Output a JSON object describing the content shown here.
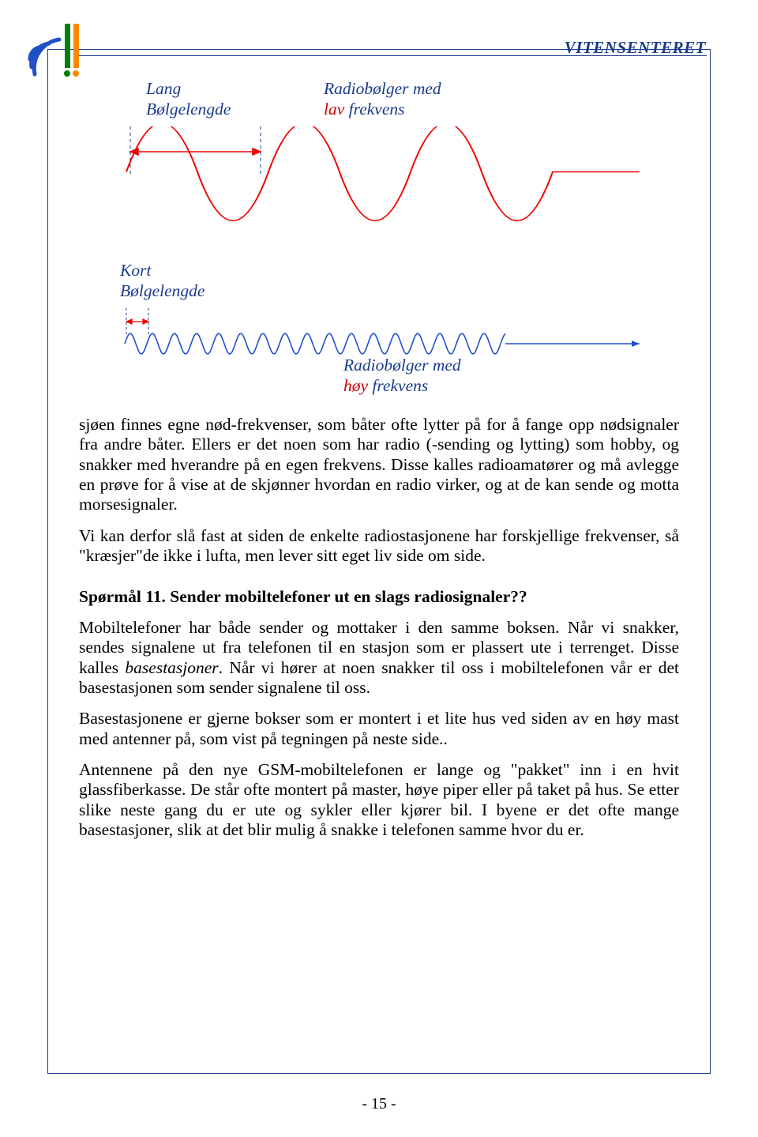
{
  "header": {
    "title": "VITENSENTERET"
  },
  "logo": {
    "arc_color": "#2050c8",
    "green_color": "#008000",
    "orange_color": "#ff8800"
  },
  "figure1": {
    "label_lang_line1": "Lang",
    "label_lang_line2": "Bølgelengde",
    "label_lav_line1": "Radiobølger med",
    "label_lav_prefix": "lav",
    "label_lav_suffix": " frekvens",
    "wave_color": "#ee0000",
    "marker_color": "#1a3a8a",
    "arrow_color": "#ee0000"
  },
  "figure2": {
    "label_kort_line1": "Kort",
    "label_kort_line2": "Bølgelengde",
    "label_hoy_line1": "Radiobølger med",
    "label_hoy_prefix": "høy",
    "label_hoy_suffix": " frekvens",
    "wave_color": "#2050c8",
    "marker_color": "#1a3a8a",
    "arrow_color": "#ee0000"
  },
  "body": {
    "p1": "sjøen finnes egne nød-frekvenser, som båter ofte lytter på for å fange opp nødsignaler fra andre båter. Ellers er det noen som har radio (-sending og lytting) som hobby, og snakker med hverandre på en egen frekvens. Disse kalles radioamatører og må avlegge en prøve for å vise at de skjønner hvordan en radio virker, og at de kan sende og motta morsesignaler.",
    "p2": "Vi kan derfor slå fast at siden de enkelte radiostasjonene har forskjellige frekvenser, så \"kræsjer\"de ikke i lufta, men lever sitt eget liv side om side.",
    "q11_heading": "Spørmål 11. Sender mobiltelefoner ut en slags radiosignaler??",
    "p3a": "Mobiltelefoner har både sender og mottaker i den samme boksen. Når vi snakker, sendes signalene ut fra telefonen til en stasjon som er plassert ute i terrenget. Disse kalles ",
    "p3_ital": "basestasjoner",
    "p3b": ". Når vi hører at noen snakker til oss i mobiltelefonen vår er det basestasjonen som sender signalene til oss.",
    "p4": "Basestasjonene er gjerne bokser som er montert i et lite hus ved siden av en høy mast med antenner på, som vist på tegningen på neste side..",
    "p5": "Antennene på den nye GSM-mobiltelefonen er lange og \"pakket\" inn i en hvit glassfiberkasse. De står ofte montert på master, høye piper eller på taket på hus. Se etter slike neste gang du er ute og sykler eller kjører bil. I byene er det ofte mange basestasjoner, slik at det blir mulig å snakke i telefonen samme hvor du er."
  },
  "page_number": "- 15 -"
}
